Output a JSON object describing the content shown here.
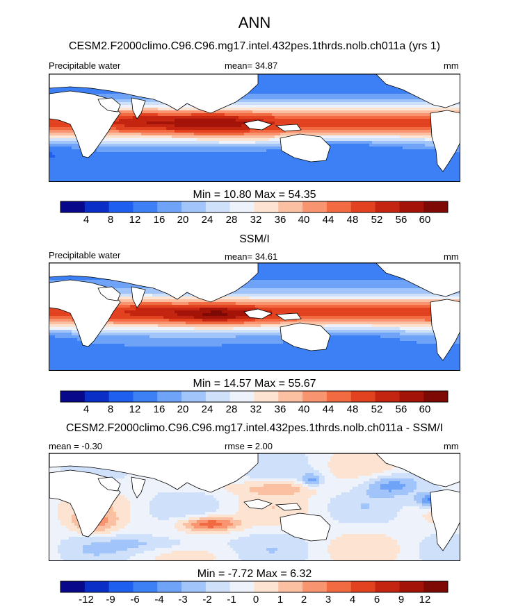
{
  "title": "ANN",
  "panels": [
    {
      "id": "model",
      "title": "CESM2.F2000climo.C96.C96.mg17.intel.432pes.1thrds.nolb.ch011a (yrs 1)",
      "left_label": "Precipitable water",
      "center_label": "mean=  34.87",
      "right_label": "mm",
      "stats": "Min =  10.80 Max =  54.35",
      "colorbar_ticks": [
        "4",
        "8",
        "12",
        "16",
        "20",
        "24",
        "28",
        "32",
        "36",
        "40",
        "44",
        "48",
        "52",
        "56",
        "60"
      ]
    },
    {
      "id": "obs",
      "title": "SSM/I",
      "left_label": "Precipitable water",
      "center_label": "mean=  34.61",
      "right_label": "mm",
      "stats": "Min =  14.57 Max =  55.67",
      "colorbar_ticks": [
        "4",
        "8",
        "12",
        "16",
        "20",
        "24",
        "28",
        "32",
        "36",
        "40",
        "44",
        "48",
        "52",
        "56",
        "60"
      ]
    },
    {
      "id": "diff",
      "title": "CESM2.F2000climo.C96.C96.mg17.intel.432pes.1thrds.nolb.ch011a - SSM/I",
      "left_label": "mean =  -0.30",
      "center_label": "rmse =   2.00",
      "right_label": "mm",
      "stats": "Min =  -7.72 Max =   6.32",
      "colorbar_ticks": [
        "-12",
        "-9",
        "-6",
        "-4",
        "-3",
        "-2",
        "-1",
        "0",
        "1",
        "2",
        "3",
        "4",
        "6",
        "9",
        "12"
      ]
    }
  ],
  "chart_data": [
    {
      "type": "heatmap",
      "title": "CESM2.F2000climo.C96.C96.mg17.intel.432pes.1thrds.nolb.ch011a (yrs 1)",
      "field": "Precipitable water",
      "units": "mm",
      "mean": 34.87,
      "min": 10.8,
      "max": 54.35,
      "contour_levels": [
        4,
        8,
        12,
        16,
        20,
        24,
        28,
        32,
        36,
        40,
        44,
        48,
        52,
        56,
        60
      ],
      "palette": [
        "#08088a",
        "#0a2fc6",
        "#1f5ff0",
        "#3d80f5",
        "#6ea3f8",
        "#a1c5fa",
        "#cfe0fb",
        "#eef3fb",
        "#fde3d2",
        "#fbc0a2",
        "#f89470",
        "#f26a42",
        "#e2421f",
        "#c42510",
        "#a31308",
        "#7e0a05"
      ]
    },
    {
      "type": "heatmap",
      "title": "SSM/I",
      "field": "Precipitable water",
      "units": "mm",
      "mean": 34.61,
      "min": 14.57,
      "max": 55.67,
      "contour_levels": [
        4,
        8,
        12,
        16,
        20,
        24,
        28,
        32,
        36,
        40,
        44,
        48,
        52,
        56,
        60
      ],
      "palette": [
        "#08088a",
        "#0a2fc6",
        "#1f5ff0",
        "#3d80f5",
        "#6ea3f8",
        "#a1c5fa",
        "#cfe0fb",
        "#eef3fb",
        "#fde3d2",
        "#fbc0a2",
        "#f89470",
        "#f26a42",
        "#e2421f",
        "#c42510",
        "#a31308",
        "#7e0a05"
      ]
    },
    {
      "type": "heatmap",
      "title": "CESM2.F2000climo.C96.C96.mg17.intel.432pes.1thrds.nolb.ch011a - SSM/I",
      "units": "mm",
      "mean": -0.3,
      "rmse": 2.0,
      "min": -7.72,
      "max": 6.32,
      "contour_levels": [
        -12,
        -9,
        -6,
        -4,
        -3,
        -2,
        -1,
        0,
        1,
        2,
        3,
        4,
        6,
        9,
        12
      ],
      "palette": [
        "#08088a",
        "#0a2fc6",
        "#1f5ff0",
        "#3d80f5",
        "#6ea3f8",
        "#a1c5fa",
        "#cfe0fb",
        "#eef3fb",
        "#fde3d2",
        "#fbc0a2",
        "#f89470",
        "#f26a42",
        "#e2421f",
        "#c42510",
        "#a31308",
        "#7e0a05"
      ]
    }
  ]
}
